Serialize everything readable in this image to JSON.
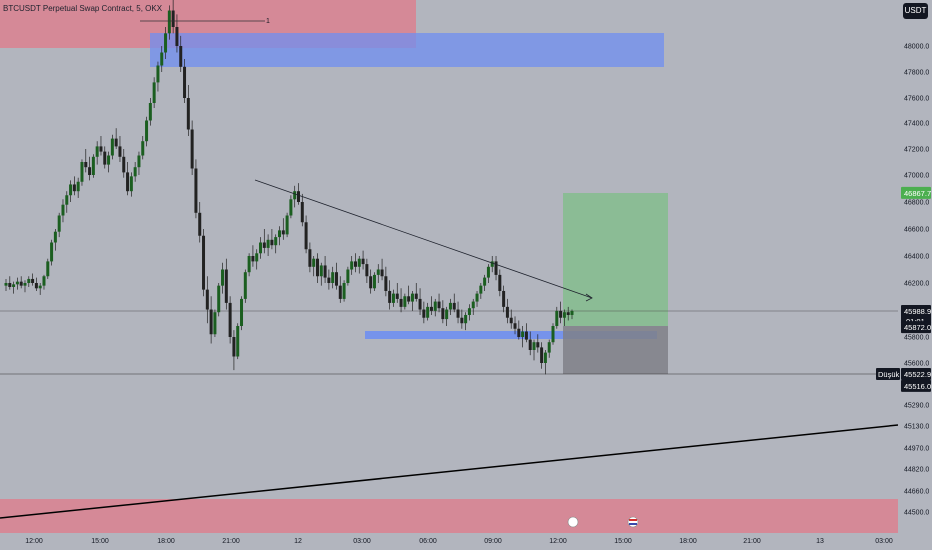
{
  "header": {
    "title": "BTCUSDT Perpetual Swap Contract, 5, OKX",
    "currency_button": "USDT"
  },
  "colors": {
    "background": "#b2b5be",
    "candle_body": "#222222",
    "supply_zone": "#e07b8a",
    "blue_zone": "#6f8ff0",
    "target_zone": "#7dbf87",
    "stop_zone": "#7f8088",
    "price_tag_dark": "#131722",
    "price_tag_green": "#4caf50"
  },
  "chart_data": {
    "type": "candlestick",
    "symbol": "BTCUSDT",
    "timeframe": "5",
    "exchange": "OKX",
    "y_axis_ticks": [
      48000.0,
      47800.0,
      47600.0,
      47400.0,
      47200.0,
      47000.0,
      46800.0,
      46600.0,
      46400.0,
      46200.0,
      45800.0,
      45600.0,
      45290.0,
      45130.0,
      44970.0,
      44820.0,
      44660.0,
      44500.0
    ],
    "y_axis_ticks_text": [
      "48000.0",
      "47800.0",
      "47600.0",
      "47400.0",
      "47200.0",
      "47000.0",
      "46800.0",
      "46600.0",
      "46400.0",
      "46200.0",
      "45800.0",
      "45600.0",
      "45290.0",
      "45130.0",
      "44970.0",
      "44820.0",
      "44660.0",
      "44500.0"
    ],
    "x_axis_ticks": [
      "12:00",
      "15:00",
      "18:00",
      "21:00",
      "12",
      "03:00",
      "06:00",
      "09:00",
      "12:00",
      "15:00",
      "18:00",
      "21:00",
      "13",
      "03:00"
    ],
    "price_tags": {
      "target": "46867.7",
      "current": "45988.9",
      "countdown": "01:01",
      "entry": "45872.0",
      "low_label": "Düşük",
      "low": "45522.9",
      "stop": "45516.0"
    },
    "key_levels": {
      "top": 48300,
      "target": 46867.7,
      "current": 45988.9,
      "entry": 45872.0,
      "low": 45522.9,
      "stop": 45516.0
    },
    "annotation_label": "1",
    "candles": [
      [
        46180,
        46230,
        46140,
        46200
      ],
      [
        46200,
        46250,
        46150,
        46170
      ],
      [
        46170,
        46210,
        46120,
        46190
      ],
      [
        46190,
        46240,
        46150,
        46210
      ],
      [
        46210,
        46250,
        46160,
        46180
      ],
      [
        46180,
        46220,
        46130,
        46200
      ],
      [
        46200,
        46250,
        46170,
        46230
      ],
      [
        46230,
        46270,
        46180,
        46200
      ],
      [
        46200,
        46240,
        46140,
        46160
      ],
      [
        46160,
        46200,
        46110,
        46180
      ],
      [
        46180,
        46260,
        46150,
        46250
      ],
      [
        46250,
        46380,
        46230,
        46360
      ],
      [
        46360,
        46520,
        46330,
        46500
      ],
      [
        46500,
        46600,
        46440,
        46580
      ],
      [
        46580,
        46720,
        46540,
        46700
      ],
      [
        46700,
        46820,
        46650,
        46780
      ],
      [
        46780,
        46880,
        46720,
        46850
      ],
      [
        46850,
        46960,
        46800,
        46930
      ],
      [
        46930,
        46990,
        46850,
        46880
      ],
      [
        46880,
        46980,
        46830,
        46950
      ],
      [
        46950,
        47120,
        46920,
        47100
      ],
      [
        47100,
        47200,
        47020,
        47060
      ],
      [
        47060,
        47140,
        46960,
        47000
      ],
      [
        47000,
        47160,
        46980,
        47140
      ],
      [
        47140,
        47260,
        47080,
        47220
      ],
      [
        47220,
        47300,
        47150,
        47180
      ],
      [
        47180,
        47220,
        47050,
        47080
      ],
      [
        47080,
        47180,
        47020,
        47150
      ],
      [
        47150,
        47310,
        47120,
        47280
      ],
      [
        47280,
        47360,
        47200,
        47220
      ],
      [
        47220,
        47300,
        47100,
        47140
      ],
      [
        47140,
        47200,
        46980,
        47020
      ],
      [
        47020,
        47100,
        46850,
        46880
      ],
      [
        46880,
        47020,
        46840,
        46990
      ],
      [
        46990,
        47100,
        46950,
        47060
      ],
      [
        47060,
        47180,
        47000,
        47150
      ],
      [
        47150,
        47300,
        47120,
        47260
      ],
      [
        47260,
        47450,
        47220,
        47420
      ],
      [
        47420,
        47600,
        47380,
        47560
      ],
      [
        47560,
        47760,
        47520,
        47720
      ],
      [
        47720,
        47880,
        47650,
        47850
      ],
      [
        47850,
        48000,
        47800,
        47950
      ],
      [
        47950,
        48150,
        47900,
        48100
      ],
      [
        48100,
        48320,
        48050,
        48280
      ],
      [
        48280,
        48380,
        48100,
        48150
      ],
      [
        48150,
        48250,
        47950,
        48000
      ],
      [
        48000,
        48080,
        47800,
        47840
      ],
      [
        47840,
        47900,
        47560,
        47600
      ],
      [
        47600,
        47700,
        47300,
        47350
      ],
      [
        47350,
        47420,
        47000,
        47050
      ],
      [
        47050,
        47120,
        46680,
        46720
      ],
      [
        46720,
        46800,
        46500,
        46550
      ],
      [
        46550,
        46600,
        46100,
        46150
      ],
      [
        46150,
        46250,
        45900,
        46000
      ],
      [
        46000,
        46100,
        45750,
        45820
      ],
      [
        45820,
        46000,
        45800,
        45980
      ],
      [
        45980,
        46200,
        45950,
        46180
      ],
      [
        46180,
        46350,
        46120,
        46300
      ],
      [
        46300,
        46380,
        46000,
        46050
      ],
      [
        46050,
        46100,
        45750,
        45800
      ],
      [
        45800,
        45850,
        45550,
        45650
      ],
      [
        45650,
        45900,
        45630,
        45880
      ],
      [
        45880,
        46100,
        45850,
        46080
      ],
      [
        46080,
        46300,
        46050,
        46280
      ],
      [
        46280,
        46420,
        46250,
        46400
      ],
      [
        46400,
        46480,
        46320,
        46360
      ],
      [
        46360,
        46450,
        46300,
        46420
      ],
      [
        46420,
        46540,
        46380,
        46500
      ],
      [
        46500,
        46600,
        46420,
        46460
      ],
      [
        46460,
        46560,
        46400,
        46520
      ],
      [
        46520,
        46600,
        46450,
        46480
      ],
      [
        46480,
        46560,
        46420,
        46540
      ],
      [
        46540,
        46620,
        46480,
        46590
      ],
      [
        46590,
        46680,
        46520,
        46560
      ],
      [
        46560,
        46720,
        46540,
        46700
      ],
      [
        46700,
        46850,
        46680,
        46820
      ],
      [
        46820,
        46920,
        46760,
        46880
      ],
      [
        46880,
        46940,
        46780,
        46800
      ],
      [
        46800,
        46860,
        46620,
        46650
      ],
      [
        46650,
        46700,
        46420,
        46450
      ],
      [
        46450,
        46500,
        46280,
        46320
      ],
      [
        46320,
        46400,
        46250,
        46380
      ],
      [
        46380,
        46420,
        46200,
        46250
      ],
      [
        46250,
        46350,
        46180,
        46330
      ],
      [
        46330,
        46400,
        46200,
        46240
      ],
      [
        46240,
        46300,
        46150,
        46200
      ],
      [
        46200,
        46320,
        46160,
        46280
      ],
      [
        46280,
        46350,
        46150,
        46180
      ],
      [
        46180,
        46250,
        46050,
        46080
      ],
      [
        46080,
        46220,
        46060,
        46200
      ],
      [
        46200,
        46320,
        46180,
        46300
      ],
      [
        46300,
        46400,
        46260,
        46360
      ],
      [
        46360,
        46420,
        46280,
        46320
      ],
      [
        46320,
        46400,
        46270,
        46380
      ],
      [
        46380,
        46440,
        46300,
        46340
      ],
      [
        46340,
        46380,
        46200,
        46250
      ],
      [
        46250,
        46300,
        46120,
        46160
      ],
      [
        46160,
        46280,
        46140,
        46260
      ],
      [
        46260,
        46340,
        46200,
        46300
      ],
      [
        46300,
        46380,
        46220,
        46250
      ],
      [
        46250,
        46320,
        46100,
        46140
      ],
      [
        46140,
        46220,
        46000,
        46050
      ],
      [
        46050,
        46150,
        46020,
        46120
      ],
      [
        46120,
        46200,
        46050,
        46080
      ],
      [
        46080,
        46160,
        45980,
        46020
      ],
      [
        46020,
        46120,
        46000,
        46100
      ],
      [
        46100,
        46180,
        46040,
        46060
      ],
      [
        46060,
        46140,
        45990,
        46120
      ],
      [
        46120,
        46200,
        46060,
        46080
      ],
      [
        46080,
        46160,
        45960,
        46000
      ],
      [
        46000,
        46060,
        45900,
        45940
      ],
      [
        45940,
        46050,
        45920,
        46020
      ],
      [
        46020,
        46100,
        45960,
        45990
      ],
      [
        45990,
        46080,
        45950,
        46060
      ],
      [
        46060,
        46120,
        45980,
        46010
      ],
      [
        46010,
        46070,
        45900,
        45930
      ],
      [
        45930,
        46020,
        45880,
        46000
      ],
      [
        46000,
        46080,
        45960,
        46050
      ],
      [
        46050,
        46120,
        45980,
        46000
      ],
      [
        46000,
        46060,
        45900,
        45940
      ],
      [
        45940,
        46000,
        45860,
        45900
      ],
      [
        45900,
        45980,
        45850,
        45960
      ],
      [
        45960,
        46040,
        45920,
        46010
      ],
      [
        46010,
        46080,
        45960,
        46060
      ],
      [
        46060,
        46140,
        46020,
        46120
      ],
      [
        46120,
        46200,
        46080,
        46180
      ],
      [
        46180,
        46260,
        46140,
        46240
      ],
      [
        46240,
        46340,
        46200,
        46320
      ],
      [
        46320,
        46400,
        46280,
        46360
      ],
      [
        46360,
        46400,
        46220,
        46260
      ],
      [
        46260,
        46300,
        46100,
        46140
      ],
      [
        46140,
        46180,
        45980,
        46020
      ],
      [
        46020,
        46080,
        45900,
        45940
      ],
      [
        45940,
        46000,
        45860,
        45900
      ],
      [
        45900,
        45950,
        45820,
        45860
      ],
      [
        45860,
        45920,
        45780,
        45800
      ],
      [
        45800,
        45880,
        45720,
        45840
      ],
      [
        45840,
        45900,
        45760,
        45780
      ],
      [
        45780,
        45840,
        45660,
        45700
      ],
      [
        45700,
        45780,
        45620,
        45760
      ],
      [
        45760,
        45820,
        45680,
        45720
      ],
      [
        45720,
        45760,
        45560,
        45600
      ],
      [
        45600,
        45700,
        45520,
        45680
      ],
      [
        45680,
        45780,
        45640,
        45760
      ],
      [
        45760,
        45900,
        45740,
        45880
      ],
      [
        45880,
        46020,
        45860,
        45990
      ],
      [
        45990,
        46060,
        45900,
        45940
      ],
      [
        45940,
        46000,
        45880,
        45980
      ],
      [
        45980,
        46020,
        45920,
        45960
      ],
      [
        45960,
        46000,
        45930,
        45989
      ]
    ]
  }
}
